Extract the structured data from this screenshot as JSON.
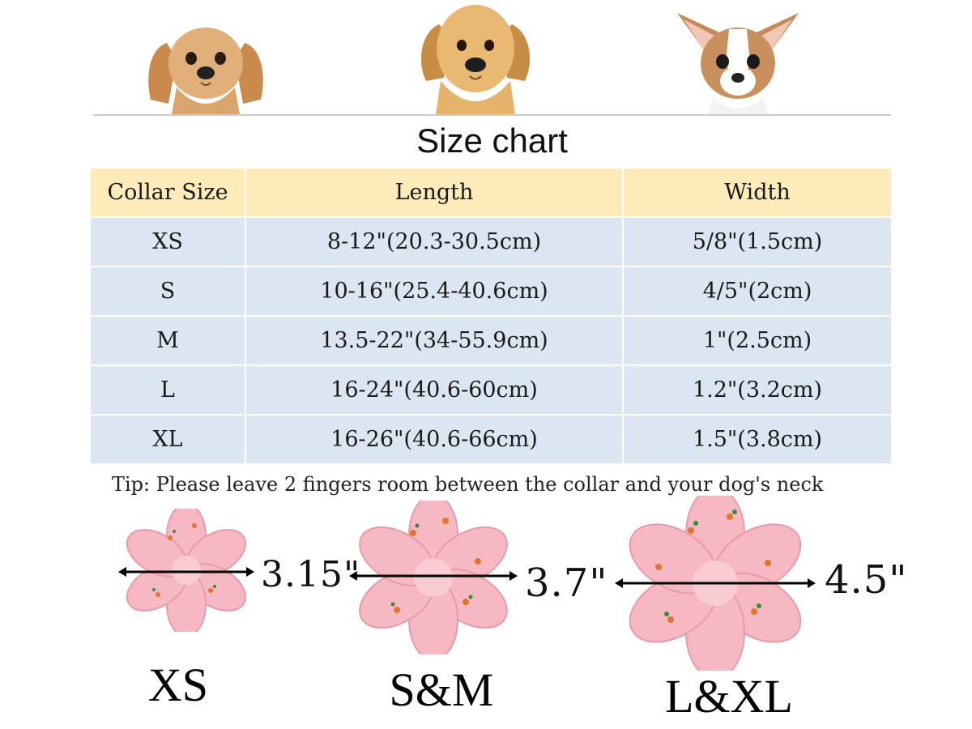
{
  "title": "Size chart",
  "table": {
    "headers": [
      "Collar Size",
      "Length",
      "Width"
    ],
    "rows": [
      {
        "size": "XS",
        "length": "8-12\"(20.3-30.5cm)",
        "width": "5/8\"(1.5cm)"
      },
      {
        "size": "S",
        "length": "10-16\"(25.4-40.6cm)",
        "width": "4/5\"(2cm)"
      },
      {
        "size": "M",
        "length": "13.5-22\"(34-55.9cm)",
        "width": "1\"(2.5cm)"
      },
      {
        "size": "L",
        "length": "16-24\"(40.6-60cm)",
        "width": "1.2\"(3.2cm)"
      },
      {
        "size": "XL",
        "length": "16-26\"(40.6-66cm)",
        "width": "1.5\"(3.8cm)"
      }
    ]
  },
  "tip": "Tip: Please leave 2 fingers room between the collar and your dog's neck",
  "flowers": [
    {
      "label": "XS",
      "measurement": "3.15\""
    },
    {
      "label": "S&M",
      "measurement": "3.7\""
    },
    {
      "label": "L&XL",
      "measurement": "4.5\""
    }
  ],
  "colors": {
    "header_bg": "#fdebb9",
    "row_bg": "#dbe6f2",
    "flower_pink": "#f6b9c4"
  }
}
